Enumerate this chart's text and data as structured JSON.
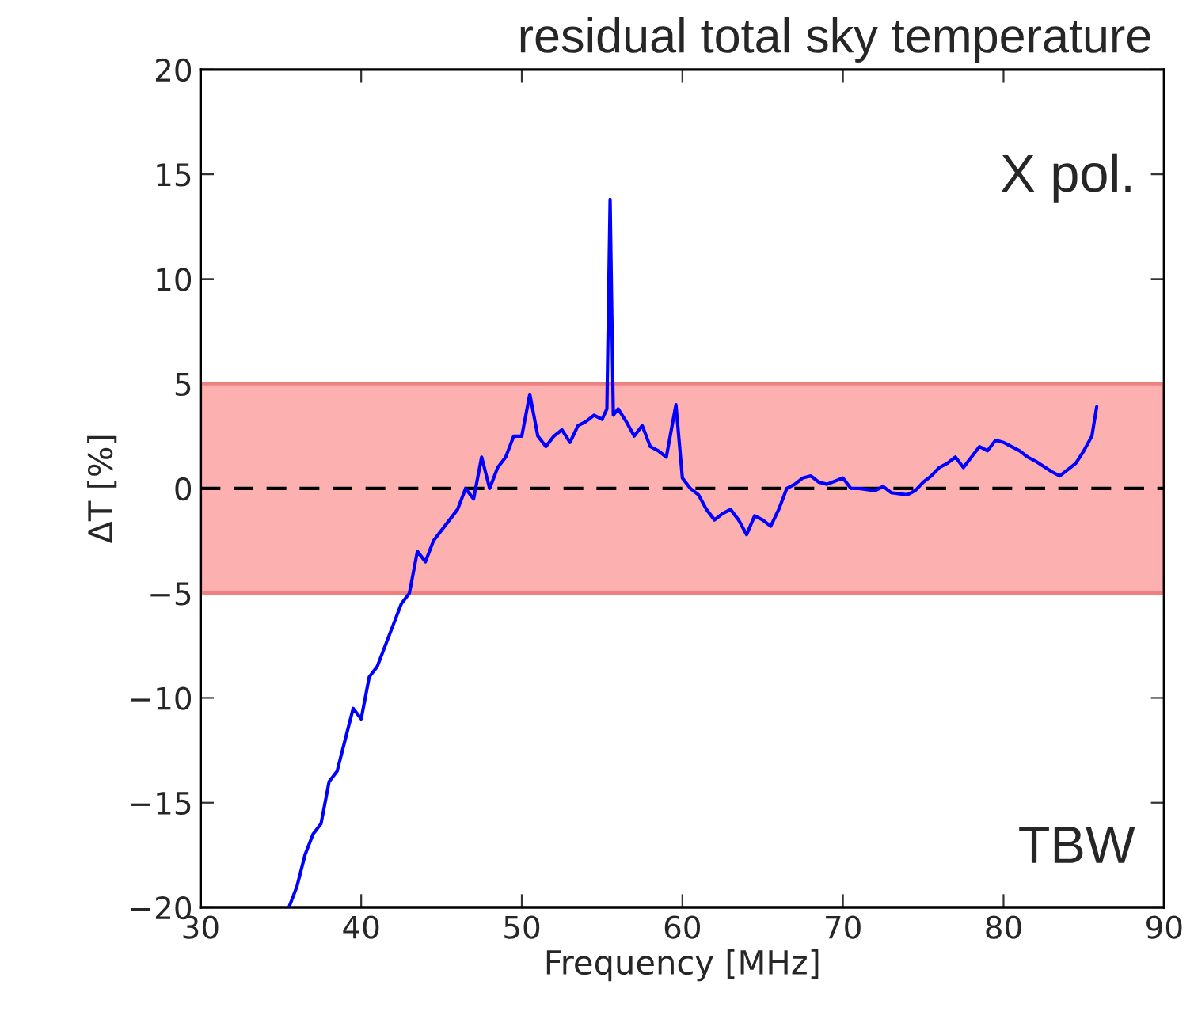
{
  "chart_data": {
    "type": "line",
    "title": "residual total sky temperature",
    "xlabel": "Frequency [MHz]",
    "ylabel": "ΔT [%]",
    "annotations": [
      "X pol.",
      "TBW"
    ],
    "xlim": [
      30,
      90
    ],
    "xticks": [
      30,
      40,
      50,
      60,
      70,
      80,
      90
    ],
    "ylim": [
      -20,
      20
    ],
    "yticks": [
      {
        "value": -20,
        "label": "−20"
      },
      {
        "value": -15,
        "label": "−15"
      },
      {
        "value": -10,
        "label": "−10"
      },
      {
        "value": -5,
        "label": "−5"
      },
      0,
      5,
      10,
      15,
      20
    ],
    "grid": false,
    "legend": false,
    "ref_lines": [
      {
        "axis": "y",
        "value": 0,
        "color": "#000000",
        "line_style": "dashed"
      }
    ],
    "bands": [
      {
        "axis": "y",
        "from": -5,
        "to": 5,
        "color": "#fcb0b0"
      }
    ],
    "series": [
      {
        "color": "#0000ff",
        "x": [
          35.5,
          36,
          36.5,
          37,
          37.5,
          38,
          38.5,
          39,
          39.5,
          40,
          40.5,
          41,
          41.5,
          42,
          42.5,
          43,
          43.5,
          44,
          44.5,
          45,
          45.5,
          46,
          46.5,
          47,
          47.5,
          48,
          48.5,
          49,
          49.5,
          50,
          50.5,
          51,
          51.5,
          52,
          52.5,
          53,
          53.5,
          54,
          54.5,
          55,
          55.3,
          55.5,
          55.7,
          56,
          56.5,
          57,
          57.5,
          58,
          58.5,
          59,
          59.6,
          60,
          60.5,
          61,
          61.5,
          62,
          62.5,
          63,
          63.5,
          64,
          64.5,
          65,
          65.5,
          66,
          66.5,
          67,
          67.5,
          68,
          68.5,
          69,
          70,
          70.5,
          71,
          72,
          72.5,
          73,
          74,
          74.5,
          75,
          75.5,
          76,
          76.5,
          77,
          77.5,
          78,
          78.5,
          79,
          79.5,
          80,
          81,
          81.5,
          82,
          83,
          83.5,
          84,
          84.5,
          85,
          85.5,
          85.8
        ],
        "values": [
          -20,
          -19,
          -17.5,
          -16.5,
          -16,
          -14,
          -13.5,
          -12,
          -10.5,
          -11,
          -9,
          -8.5,
          -7.5,
          -6.5,
          -5.5,
          -5,
          -3,
          -3.5,
          -2.5,
          -2,
          -1.5,
          -1,
          0,
          -0.5,
          1.5,
          0,
          1,
          1.5,
          2.5,
          2.5,
          4.5,
          2.5,
          2,
          2.5,
          2.8,
          2.2,
          3,
          3.2,
          3.5,
          3.3,
          3.8,
          13.8,
          3.5,
          3.8,
          3.2,
          2.5,
          3,
          2,
          1.8,
          1.5,
          4,
          0.5,
          0,
          -0.3,
          -1,
          -1.5,
          -1.2,
          -1,
          -1.5,
          -2.2,
          -1.3,
          -1.5,
          -1.8,
          -1,
          0,
          0.2,
          0.5,
          0.6,
          0.3,
          0.2,
          0.5,
          0,
          0,
          -0.1,
          0.1,
          -0.2,
          -0.3,
          -0.1,
          0.3,
          0.6,
          1,
          1.2,
          1.5,
          1,
          1.5,
          2,
          1.8,
          2.3,
          2.2,
          1.8,
          1.5,
          1.3,
          0.8,
          0.6,
          0.9,
          1.2,
          1.8,
          2.5,
          3.9
        ]
      }
    ]
  }
}
